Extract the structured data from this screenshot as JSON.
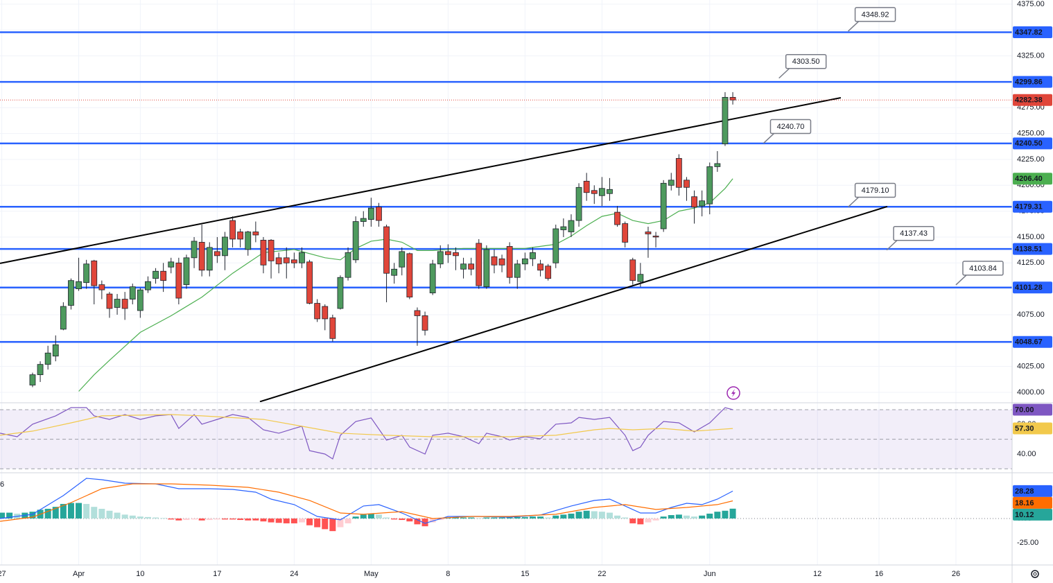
{
  "chart_data": [
    {
      "type": "candlestick",
      "up_color": "#4e9a5e",
      "down_color": "#e0463a",
      "level_color": "#2962ff",
      "xlim": [
        -4.23,
        127.3
      ],
      "xticks": [
        {
          "value": -4,
          "label": "27"
        },
        {
          "value": 6,
          "label": "Apr"
        },
        {
          "value": 14,
          "label": "10"
        },
        {
          "value": 24,
          "label": "17"
        },
        {
          "value": 34,
          "label": "24"
        },
        {
          "value": 44,
          "label": "May"
        },
        {
          "value": 54,
          "label": "8"
        },
        {
          "value": 64,
          "label": "15"
        },
        {
          "value": 74,
          "label": "22"
        },
        {
          "value": 88,
          "label": "Jun"
        },
        {
          "value": 102,
          "label": "12"
        },
        {
          "value": 110,
          "label": "16"
        },
        {
          "value": 120,
          "label": "26"
        }
      ],
      "ylim": [
        3990.6,
        4379
      ],
      "yticks": [
        {
          "value": 4375,
          "label": "4375.00"
        },
        {
          "value": 4350,
          "label": "4350.00"
        },
        {
          "value": 4325,
          "label": "4325.00"
        },
        {
          "value": 4300,
          "label": "4300.00"
        },
        {
          "value": 4275,
          "label": "4275.00"
        },
        {
          "value": 4250,
          "label": "4250.00"
        },
        {
          "value": 4225,
          "label": "4225.00"
        },
        {
          "value": 4200,
          "label": "4200.00"
        },
        {
          "value": 4175,
          "label": "4175.00"
        },
        {
          "value": 4150,
          "label": "4150.00"
        },
        {
          "value": 4125,
          "label": "4125.00"
        },
        {
          "value": 4100,
          "label": "4100.00"
        },
        {
          "value": 4075,
          "label": "4075.00"
        },
        {
          "value": 4050,
          "label": "4050.00"
        },
        {
          "value": 4025,
          "label": "4025.00"
        },
        {
          "value": 4000,
          "label": "4000.00"
        }
      ],
      "open": [
        4007,
        4017,
        4027,
        4035,
        4061,
        4084,
        4100,
        4106,
        4127,
        4104,
        4095,
        4082,
        4090,
        4090,
        4079,
        4099,
        4110,
        4117,
        4121,
        4125,
        4104,
        4130,
        4145,
        4118,
        4136,
        4132,
        4166,
        4155,
        4138,
        4155,
        4147,
        4147,
        4130,
        4130,
        4128,
        4125,
        4126,
        4086,
        4083,
        4072,
        4081,
        4111,
        4128,
        4165,
        4167,
        4179,
        4160,
        4113,
        4121,
        4134,
        4079,
        4074,
        4096,
        4124,
        4136,
        4135,
        4119,
        4124,
        4144,
        4102,
        4131,
        4129,
        4141,
        4111,
        4124,
        4129,
        4124,
        4122,
        4125,
        4157,
        4155,
        4166,
        4204,
        4195,
        4190,
        4192,
        4174,
        4163,
        4128,
        4107,
        4155,
        4151,
        4158,
        4200,
        4226,
        4205,
        4189,
        4180,
        4182,
        4218,
        4240,
        4285
      ],
      "high": [
        4019,
        4030,
        4045,
        4055,
        4087,
        4110,
        4130,
        4128,
        4128,
        4108,
        4097,
        4095,
        4097,
        4105,
        4101,
        4112,
        4120,
        4125,
        4130,
        4130,
        4133,
        4150,
        4162,
        4145,
        4150,
        4155,
        4170,
        4158,
        4156,
        4165,
        4150,
        4148,
        4135,
        4140,
        4135,
        4140,
        4128,
        4090,
        4085,
        4075,
        4113,
        4140,
        4170,
        4175,
        4188,
        4183,
        4162,
        4125,
        4140,
        4135,
        4082,
        4078,
        4128,
        4142,
        4143,
        4140,
        4130,
        4130,
        4148,
        4142,
        4138,
        4133,
        4145,
        4128,
        4135,
        4140,
        4128,
        4124,
        4162,
        4168,
        4172,
        4202,
        4212,
        4200,
        4208,
        4207,
        4180,
        4165,
        4130,
        4125,
        4160,
        4155,
        4205,
        4212,
        4230,
        4208,
        4195,
        4195,
        4222,
        4233,
        4290,
        4290
      ],
      "low": [
        4005,
        4010,
        4022,
        4030,
        4060,
        4080,
        4098,
        4100,
        4085,
        4090,
        4072,
        4075,
        4070,
        4085,
        4072,
        4096,
        4105,
        4097,
        4115,
        4085,
        4100,
        4120,
        4112,
        4112,
        4125,
        4118,
        4140,
        4140,
        4132,
        4145,
        4115,
        4110,
        4115,
        4110,
        4120,
        4120,
        4085,
        4068,
        4060,
        4049,
        4080,
        4108,
        4125,
        4160,
        4160,
        4160,
        4087,
        4105,
        4113,
        4090,
        4045,
        4055,
        4094,
        4120,
        4125,
        4118,
        4110,
        4113,
        4100,
        4100,
        4115,
        4116,
        4105,
        4100,
        4118,
        4122,
        4112,
        4108,
        4120,
        4150,
        4150,
        4160,
        4185,
        4182,
        4180,
        4185,
        4160,
        4140,
        4104,
        4102,
        4130,
        4140,
        4155,
        4195,
        4190,
        4185,
        4163,
        4170,
        4172,
        4213,
        4238,
        4278
      ],
      "close": [
        4017,
        4027,
        4038,
        4046,
        4083,
        4108,
        4107,
        4124,
        4103,
        4099,
        4081,
        4090,
        4081,
        4102,
        4099,
        4107,
        4117,
        4108,
        4126,
        4091,
        4130,
        4146,
        4118,
        4140,
        4132,
        4150,
        4148,
        4148,
        4155,
        4152,
        4123,
        4127,
        4124,
        4125,
        4125,
        4135,
        4086,
        4071,
        4071,
        4052,
        4111,
        4135,
        4165,
        4168,
        4178,
        4166,
        4115,
        4119,
        4136,
        4092,
        4074,
        4060,
        4124,
        4136,
        4133,
        4132,
        4124,
        4119,
        4103,
        4138,
        4123,
        4123,
        4111,
        4124,
        4129,
        4135,
        4118,
        4110,
        4158,
        4160,
        4166,
        4198,
        4193,
        4192,
        4197,
        4196,
        4162,
        4145,
        4108,
        4114,
        4153,
        4150,
        4202,
        4205,
        4198,
        4198,
        4179,
        4185,
        4218,
        4221,
        4285,
        4282.38
      ],
      "ma": {
        "color": "#4caf50",
        "x": [
          6,
          8,
          10,
          14,
          18,
          22,
          26,
          30,
          34,
          38,
          40,
          42,
          44,
          46,
          48,
          50,
          52,
          56,
          60,
          64,
          68,
          70,
          72,
          74,
          76,
          78,
          80,
          82,
          84,
          86,
          88,
          90,
          91
        ],
        "values": [
          4001,
          4017,
          4031,
          4058,
          4074,
          4092,
          4115,
          4135,
          4138,
          4130,
          4128,
          4139,
          4146,
          4148,
          4145,
          4137,
          4137,
          4139,
          4139,
          4139,
          4143,
          4151,
          4161,
          4170,
          4173,
          4166,
          4163,
          4166,
          4175,
          4178,
          4183,
          4197,
          4206.4
        ],
        "value_label": "4206.40"
      },
      "levels": [
        4347.82,
        4299.86,
        {
          "value": 4240.5,
          "label": "4240.50"
        },
        4179.31,
        4138.51,
        4101.28,
        4048.67
      ],
      "trendlines": [
        {
          "x": [
            -4.23,
            105.04
          ],
          "y": [
            4124.6,
            4284.6
          ]
        },
        {
          "x": [
            29.55,
            111.08
          ],
          "y": [
            3991,
            4179.5
          ]
        }
      ],
      "annotations": [
        {
          "x": 106,
          "value": 4348.92
        },
        {
          "x": 97,
          "value": 4303.5,
          "label": "4303.50"
        },
        {
          "x": 95,
          "value": 4240.7,
          "label": "4240.70"
        },
        {
          "x": 106,
          "value": 4179.1,
          "label": "4179.10"
        },
        {
          "x": 111,
          "value": 4137.43
        },
        {
          "x": 120,
          "value": 4103.84
        }
      ]
    },
    {
      "type": "line",
      "band_color": "#7e57c2",
      "ylim": [
        27.8,
        74.2
      ],
      "yticks": [
        {
          "value": 60,
          "label": "60.00"
        },
        {
          "value": 40,
          "label": "40.00"
        }
      ],
      "levels": [
        70,
        50,
        30
      ],
      "series": [
        {
          "color": "#7e57c2",
          "x": [
            -4.23,
            -2,
            0,
            3,
            5,
            7,
            8,
            10,
            12,
            14,
            16,
            18,
            19,
            21,
            22,
            24,
            26,
            28,
            30,
            32,
            34,
            35,
            36,
            38,
            39,
            40,
            42,
            44,
            46,
            48,
            49,
            51,
            52,
            54,
            56,
            58,
            59,
            61,
            62,
            64,
            66,
            68,
            70,
            71,
            73,
            75,
            77,
            78,
            79,
            80,
            82,
            84,
            86,
            88,
            90,
            91
          ],
          "values": [
            54.1,
            51.7,
            60.2,
            65.8,
            71.4,
            71.4,
            65.8,
            63.4,
            66.7,
            63.4,
            65.8,
            66.7,
            57.3,
            66.7,
            60.2,
            63.4,
            66.7,
            64.8,
            56.4,
            54.1,
            57.3,
            58.8,
            42.3,
            40,
            36.7,
            52.7,
            62,
            64.4,
            49.4,
            52.7,
            44.7,
            40,
            52.7,
            54.1,
            51.7,
            47,
            54.1,
            51.7,
            49.4,
            51.7,
            50.3,
            60.2,
            61.1,
            64.8,
            63.4,
            64.8,
            52.7,
            42.3,
            44.7,
            52.7,
            62,
            61.1,
            55,
            61.1,
            71.4,
            70
          ],
          "value_label": "70.00"
        },
        {
          "color": "#f2c94c",
          "x": [
            -4.23,
            0,
            5,
            9,
            18,
            22,
            30,
            35,
            40,
            46,
            52,
            62,
            68,
            73,
            75,
            78,
            82,
            86,
            91
          ],
          "values": [
            52.7,
            55.5,
            61.1,
            65.8,
            66.7,
            65.8,
            63.4,
            58.8,
            54.1,
            52.7,
            51.7,
            51.7,
            52.7,
            56.4,
            57.3,
            56.4,
            57.3,
            55.5,
            57.3
          ],
          "value_label": "57.30"
        }
      ]
    },
    {
      "type": "macd",
      "label": "6",
      "ylim": [
        -47.9,
        46.4
      ],
      "yticks": [
        {
          "value": 0,
          "label": "0.00"
        },
        {
          "value": -25,
          "label": "-25.00"
        }
      ],
      "histogram": {
        "colors": [
          "#26a69a",
          "#b2dfdb",
          "#ff5252",
          "#ffcdd2"
        ],
        "x": [
          -4,
          -3,
          -2,
          -1,
          0,
          1,
          2,
          3,
          4,
          5,
          6,
          7,
          8,
          9,
          10,
          11,
          12,
          13,
          14,
          15,
          16,
          17,
          18,
          19,
          20,
          21,
          22,
          23,
          24,
          25,
          26,
          27,
          28,
          29,
          30,
          31,
          32,
          33,
          34,
          35,
          36,
          37,
          38,
          39,
          40,
          41,
          42,
          43,
          44,
          45,
          46,
          47,
          48,
          49,
          50,
          51,
          52,
          53,
          54,
          55,
          56,
          57,
          58,
          59,
          60,
          61,
          62,
          63,
          64,
          65,
          66,
          67,
          68,
          69,
          70,
          71,
          72,
          73,
          74,
          75,
          76,
          77,
          78,
          79,
          80,
          81,
          82,
          83,
          84,
          85,
          86,
          87,
          88,
          89,
          90,
          91
        ],
        "values": [
          6,
          6,
          5,
          6,
          7,
          9,
          10,
          12,
          15,
          16,
          16,
          15,
          12,
          10,
          8,
          6,
          4,
          3,
          2,
          1.5,
          1,
          0.5,
          -1,
          -2,
          -1.5,
          -1,
          -2,
          -1.5,
          -1,
          -1,
          -1,
          -1.5,
          -2,
          -2,
          -3,
          -4,
          -4.5,
          -5,
          -5,
          -4,
          -7,
          -9,
          -11,
          -13,
          -9,
          -5,
          2,
          4,
          5,
          4,
          1,
          -1,
          -1.5,
          -3,
          -6,
          -8,
          -4,
          -1.5,
          1,
          1,
          1,
          1,
          0.5,
          1,
          1,
          1,
          1,
          1.5,
          1.5,
          2,
          2,
          1,
          3,
          4,
          5,
          7,
          8,
          7.5,
          7,
          6,
          3,
          1,
          -5,
          -6,
          -4,
          -2,
          2,
          3.5,
          4,
          3,
          2,
          3,
          5,
          7,
          8,
          10.12
        ]
      },
      "series": [
        {
          "color": "#2962ff",
          "x": [
            -4.23,
            0,
            4,
            7,
            9,
            12,
            16,
            19,
            23,
            26,
            29,
            31,
            34,
            37,
            40,
            43,
            45,
            48,
            51,
            54,
            58,
            62,
            66,
            70,
            73,
            75,
            77,
            79,
            81,
            83,
            85,
            87,
            89,
            91
          ],
          "values": [
            0,
            4.3,
            23.6,
            41.4,
            40,
            36.4,
            35.7,
            30.7,
            30.7,
            30,
            27.1,
            20,
            14.3,
            2.1,
            -1.4,
            12.9,
            14.3,
            5.7,
            -5,
            2.1,
            2.1,
            1.4,
            3.6,
            12.9,
            18.6,
            20,
            12.9,
            5.7,
            5.7,
            11.4,
            15.7,
            14.3,
            20,
            28.28
          ]
        },
        {
          "color": "#ff6d00",
          "x": [
            -4.23,
            0,
            5,
            9,
            13,
            18,
            23,
            28,
            32,
            36,
            40,
            43,
            48,
            52,
            57,
            62,
            68,
            73,
            77,
            81,
            85,
            89,
            91
          ],
          "values": [
            -2.9,
            1.4,
            16.4,
            30.7,
            35.7,
            35.7,
            34.3,
            32.1,
            27.1,
            18.6,
            5.7,
            4.3,
            7.1,
            0,
            2.1,
            2.1,
            4.3,
            11.4,
            14.3,
            9.3,
            11.4,
            14.3,
            18.16
          ]
        }
      ]
    }
  ]
}
